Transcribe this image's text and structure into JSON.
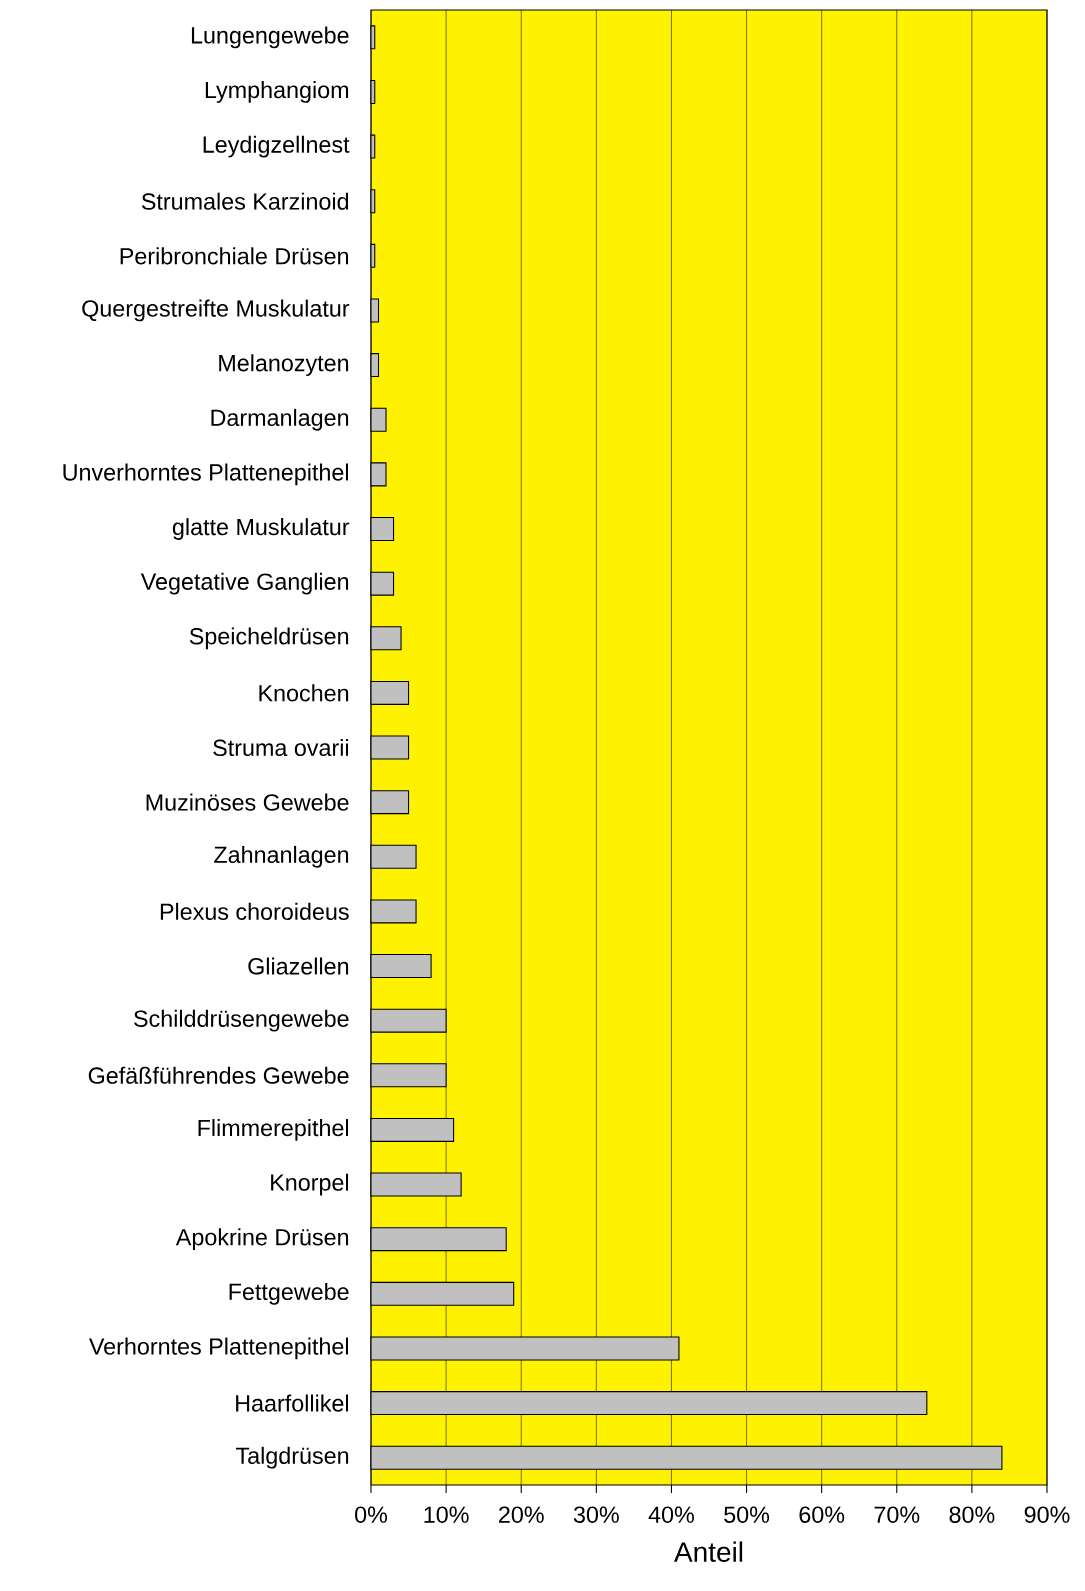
{
  "chart_data": {
    "type": "bar",
    "orientation": "horizontal",
    "xlabel": "Anteil",
    "categories": [
      "Lungengewebe",
      "Lymphangiom",
      "Leydigzellnest",
      "Strumales Karzinoid",
      "Peribronchiale Drüsen",
      "Quergestreifte Muskulatur",
      "Melanozyten",
      "Darmanlagen",
      "Unverhorntes Plattenepithel",
      "glatte Muskulatur",
      "Vegetative Ganglien",
      "Speicheldrüsen",
      "Knochen",
      "Struma ovarii",
      "Muzinöses Gewebe",
      "Zahnanlagen",
      "Plexus choroideus",
      "Gliazellen",
      "Schilddrüsengewebe",
      "Gefäßführendes Gewebe",
      "Flimmerepithel",
      "Knorpel",
      "Apokrine Drüsen",
      "Fettgewebe",
      "Verhorntes Plattenepithel",
      "Haarfollikel",
      "Talgdrüsen"
    ],
    "values": [
      0.5,
      0.5,
      0.5,
      0.5,
      0.5,
      1,
      1,
      2,
      2,
      3,
      3,
      4,
      5,
      5,
      5,
      6,
      6,
      8,
      10,
      10,
      11,
      12,
      18,
      19,
      41,
      74,
      84
    ],
    "color": "#c0c0c0",
    "xlim": [
      0,
      90
    ],
    "xticks": [
      {
        "value": 0,
        "label": "0%"
      },
      {
        "value": 10,
        "label": "10%"
      },
      {
        "value": 20,
        "label": "20%"
      },
      {
        "value": 30,
        "label": "30%"
      },
      {
        "value": 40,
        "label": "40%"
      },
      {
        "value": 50,
        "label": "50%"
      },
      {
        "value": 60,
        "label": "60%"
      },
      {
        "value": 70,
        "label": "70%"
      },
      {
        "value": 80,
        "label": "80%"
      },
      {
        "value": 90,
        "label": "90%"
      }
    ],
    "grid": "x"
  }
}
